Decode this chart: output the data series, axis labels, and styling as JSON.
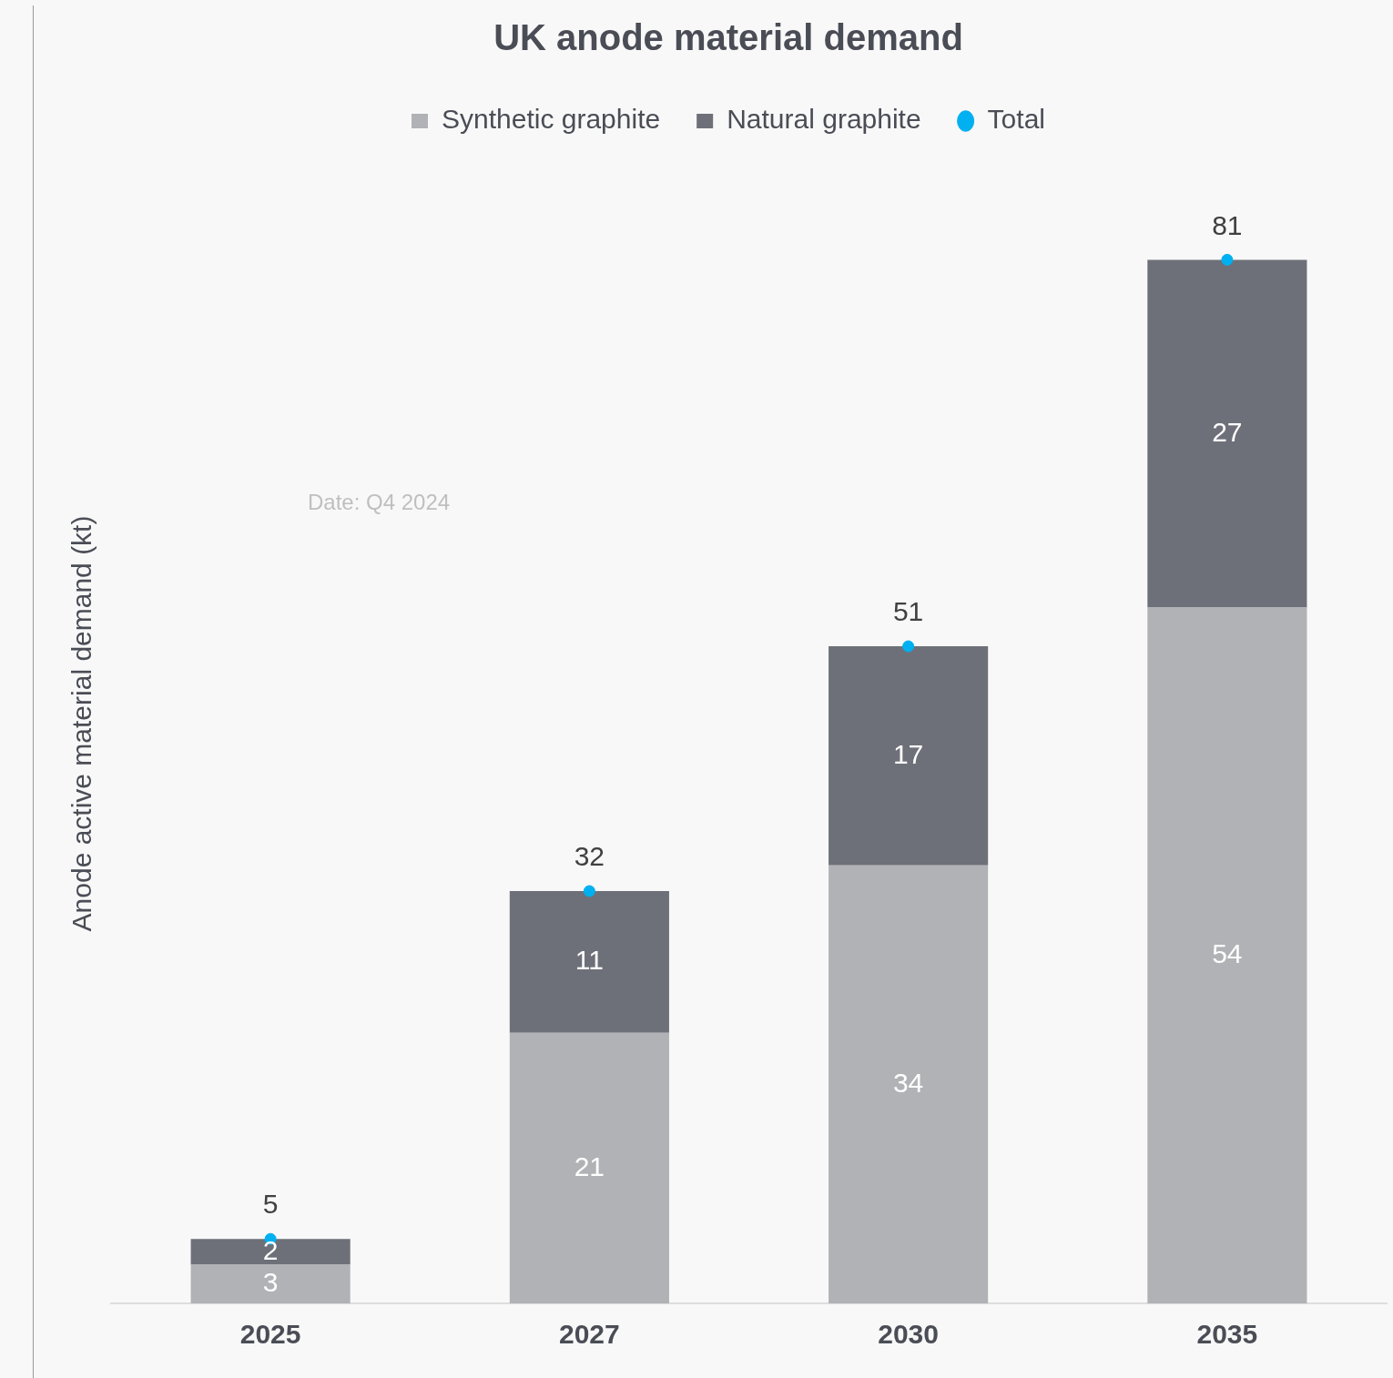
{
  "chart_data": {
    "type": "bar",
    "title": "UK anode material demand",
    "ylabel": "Anode active material demand (kt)",
    "categories": [
      "2025",
      "2027",
      "2030",
      "2035"
    ],
    "stacked": true,
    "data_labels": true,
    "legend": "top",
    "grid": false,
    "annotations": [
      "Date: Q4 2024"
    ],
    "series": [
      {
        "name": "Synthetic graphite",
        "color": "#b1b2b6",
        "values": [
          3,
          21,
          34,
          54
        ]
      },
      {
        "name": "Natural graphite",
        "color": "#6e7079",
        "values": [
          2,
          11,
          17,
          27
        ]
      },
      {
        "name": "Total",
        "type": "scatter",
        "color": "#00b0f0",
        "values": [
          5,
          32,
          51,
          81
        ],
        "marker": "circle"
      }
    ]
  }
}
